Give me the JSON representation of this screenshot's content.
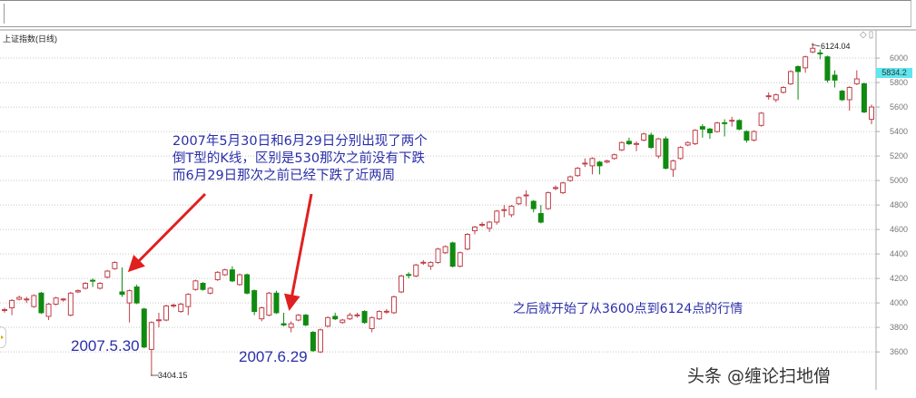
{
  "header": {
    "title": "上证指数(日线)",
    "corner_icons": [
      "diamond-icon",
      "window-icon"
    ],
    "corner_icons_text": "◇▯"
  },
  "last_price_label": "5834.2",
  "annotations": {
    "main_lines": [
      "2007年5月30日和6月29日分别出现了两个",
      "倒T型的K线，区别是530那次之前没有下跌",
      "而6月29日那次之前已经下跌了近两周"
    ],
    "date1": "2007.5.30",
    "date2": "2007.6.29",
    "after": "之后就开始了从3600点到6124点的行情",
    "high_marker": "6124.04",
    "low_marker": "3404.15"
  },
  "watermark": "头条 @缠论扫地僧",
  "colors": {
    "up": "#c0404a",
    "down": "#108a10",
    "annotation": "#2b2fa8",
    "arrow": "#e02020",
    "last_price_bg": "#5fe6ee",
    "grid": "#c8c8c8"
  },
  "chart_data": {
    "type": "candlestick",
    "title": "上证指数(日线)",
    "ylim": [
      3290,
      6230
    ],
    "y_ticks": [
      6000,
      5800,
      5600,
      5400,
      5200,
      5000,
      4800,
      4600,
      4400,
      4200,
      4000,
      3800,
      3600
    ],
    "grid": true,
    "ohlc_fields": [
      "open",
      "high",
      "low",
      "close"
    ],
    "candles": [
      [
        3940,
        3960,
        3920,
        3945
      ],
      [
        3960,
        4030,
        3900,
        4020
      ],
      [
        4030,
        4060,
        4020,
        4045
      ],
      [
        4030,
        4050,
        4000,
        4032
      ],
      [
        3970,
        4070,
        3960,
        4060
      ],
      [
        4080,
        4090,
        3910,
        3920
      ],
      [
        3890,
        4000,
        3860,
        3990
      ],
      [
        3990,
        4050,
        3980,
        4040
      ],
      [
        4030,
        4040,
        4010,
        4032
      ],
      [
        3900,
        4090,
        3890,
        4080
      ],
      [
        4090,
        4110,
        4080,
        4100
      ],
      [
        4120,
        4170,
        4110,
        4160
      ],
      [
        4185,
        4200,
        4130,
        4180
      ],
      [
        4120,
        4170,
        4110,
        4160
      ],
      [
        4210,
        4270,
        4200,
        4260
      ],
      [
        4280,
        4340,
        4270,
        4330
      ],
      [
        4090,
        4290,
        4050,
        4070
      ],
      [
        4000,
        4110,
        3840,
        4100
      ],
      [
        4130,
        4150,
        3990,
        4000
      ],
      [
        3950,
        3960,
        3630,
        3640
      ],
      [
        3620,
        3850,
        3404.15,
        3840
      ],
      [
        3860,
        3920,
        3800,
        3862
      ],
      [
        3860,
        3985,
        3850,
        3975
      ],
      [
        3980,
        3995,
        3960,
        3982
      ],
      [
        3930,
        4000,
        3920,
        3990
      ],
      [
        3970,
        4080,
        3900,
        4070
      ],
      [
        4110,
        4190,
        4100,
        4180
      ],
      [
        4160,
        4170,
        4100,
        4110
      ],
      [
        4080,
        4130,
        4070,
        4120
      ],
      [
        4190,
        4260,
        4180,
        4250
      ],
      [
        4230,
        4280,
        4220,
        4270
      ],
      [
        4270,
        4300,
        4170,
        4180
      ],
      [
        4150,
        4240,
        4140,
        4230
      ],
      [
        4230,
        4240,
        4070,
        4080
      ],
      [
        4100,
        4110,
        3900,
        3930
      ],
      [
        3870,
        3970,
        3850,
        3960
      ],
      [
        3900,
        4090,
        3890,
        4080
      ],
      [
        4080,
        4100,
        3910,
        3920
      ],
      [
        3830,
        3920,
        3810,
        3820
      ],
      [
        3800,
        3850,
        3760,
        3830
      ],
      [
        3860,
        3910,
        3850,
        3900
      ],
      [
        3900,
        3910,
        3810,
        3820
      ],
      [
        3760,
        3770,
        3600,
        3610
      ],
      [
        3600,
        3790,
        3590,
        3780
      ],
      [
        3810,
        3890,
        3800,
        3880
      ],
      [
        3890,
        3920,
        3860,
        3870
      ],
      [
        3840,
        3870,
        3830,
        3860
      ],
      [
        3870,
        3920,
        3860,
        3900
      ],
      [
        3900,
        3920,
        3880,
        3902
      ],
      [
        3930,
        3940,
        3830,
        3840
      ],
      [
        3790,
        3890,
        3760,
        3880
      ],
      [
        3870,
        3940,
        3860,
        3930
      ],
      [
        3930,
        3950,
        3910,
        3932
      ],
      [
        3920,
        4060,
        3910,
        4050
      ],
      [
        4090,
        4230,
        4080,
        4220
      ],
      [
        4232,
        4250,
        4200,
        4230
      ],
      [
        4220,
        4320,
        4210,
        4310
      ],
      [
        4330,
        4350,
        4310,
        4332
      ],
      [
        4300,
        4340,
        4270,
        4330
      ],
      [
        4330,
        4450,
        4320,
        4440
      ],
      [
        4410,
        4470,
        4400,
        4460
      ],
      [
        4490,
        4500,
        4290,
        4300
      ],
      [
        4300,
        4420,
        4290,
        4410
      ],
      [
        4440,
        4570,
        4430,
        4560
      ],
      [
        4590,
        4630,
        4560,
        4620
      ],
      [
        4640,
        4660,
        4620,
        4642
      ],
      [
        4610,
        4670,
        4580,
        4660
      ],
      [
        4660,
        4760,
        4640,
        4750
      ],
      [
        4760,
        4800,
        4700,
        4762
      ],
      [
        4720,
        4800,
        4700,
        4790
      ],
      [
        4810,
        4870,
        4800,
        4860
      ],
      [
        4880,
        4920,
        4790,
        4882
      ],
      [
        4830,
        4840,
        4740,
        4770
      ],
      [
        4730,
        4800,
        4650,
        4660
      ],
      [
        4770,
        4910,
        4760,
        4900
      ],
      [
        4940,
        4960,
        4920,
        4942
      ],
      [
        4900,
        4990,
        4890,
        4980
      ],
      [
        5000,
        5040,
        4990,
        5030
      ],
      [
        5040,
        5110,
        5030,
        5100
      ],
      [
        5140,
        5180,
        5110,
        5142
      ],
      [
        5120,
        5190,
        5050,
        5180
      ],
      [
        5150,
        5160,
        5050,
        5120
      ],
      [
        5150,
        5170,
        5140,
        5160
      ],
      [
        5180,
        5220,
        5170,
        5210
      ],
      [
        5250,
        5320,
        5240,
        5310
      ],
      [
        5320,
        5350,
        5290,
        5300
      ],
      [
        5300,
        5320,
        5240,
        5302
      ],
      [
        5330,
        5390,
        5320,
        5380
      ],
      [
        5370,
        5390,
        5260,
        5270
      ],
      [
        5200,
        5350,
        5180,
        5340
      ],
      [
        5340,
        5360,
        5090,
        5100
      ],
      [
        5090,
        5170,
        5030,
        5160
      ],
      [
        5180,
        5280,
        5170,
        5270
      ],
      [
        5290,
        5320,
        5280,
        5310
      ],
      [
        5300,
        5420,
        5290,
        5410
      ],
      [
        5440,
        5460,
        5350,
        5420
      ],
      [
        5420,
        5430,
        5340,
        5390
      ],
      [
        5400,
        5480,
        5390,
        5470
      ],
      [
        5472,
        5500,
        5360,
        5470
      ],
      [
        5490,
        5520,
        5440,
        5492
      ],
      [
        5490,
        5500,
        5410,
        5420
      ],
      [
        5400,
        5410,
        5310,
        5330
      ],
      [
        5330,
        5410,
        5320,
        5400
      ],
      [
        5450,
        5560,
        5440,
        5550
      ],
      [
        5690,
        5720,
        5660,
        5692
      ],
      [
        5660,
        5710,
        5640,
        5700
      ],
      [
        5720,
        5770,
        5710,
        5760
      ],
      [
        5790,
        5900,
        5780,
        5890
      ],
      [
        5930,
        5940,
        5660,
        5890
      ],
      [
        5920,
        6020,
        5880,
        6010
      ],
      [
        6050,
        6124.04,
        6040,
        6080
      ],
      [
        6042,
        6070,
        5990,
        6040
      ],
      [
        6010,
        6020,
        5800,
        5820
      ],
      [
        5860,
        5900,
        5760,
        5820
      ],
      [
        5730,
        5740,
        5650,
        5660
      ],
      [
        5660,
        5770,
        5570,
        5760
      ],
      [
        5790,
        5900,
        5780,
        5830
      ],
      [
        5790,
        5800,
        5550,
        5560
      ],
      [
        5500,
        5620,
        5460,
        5600
      ]
    ]
  }
}
